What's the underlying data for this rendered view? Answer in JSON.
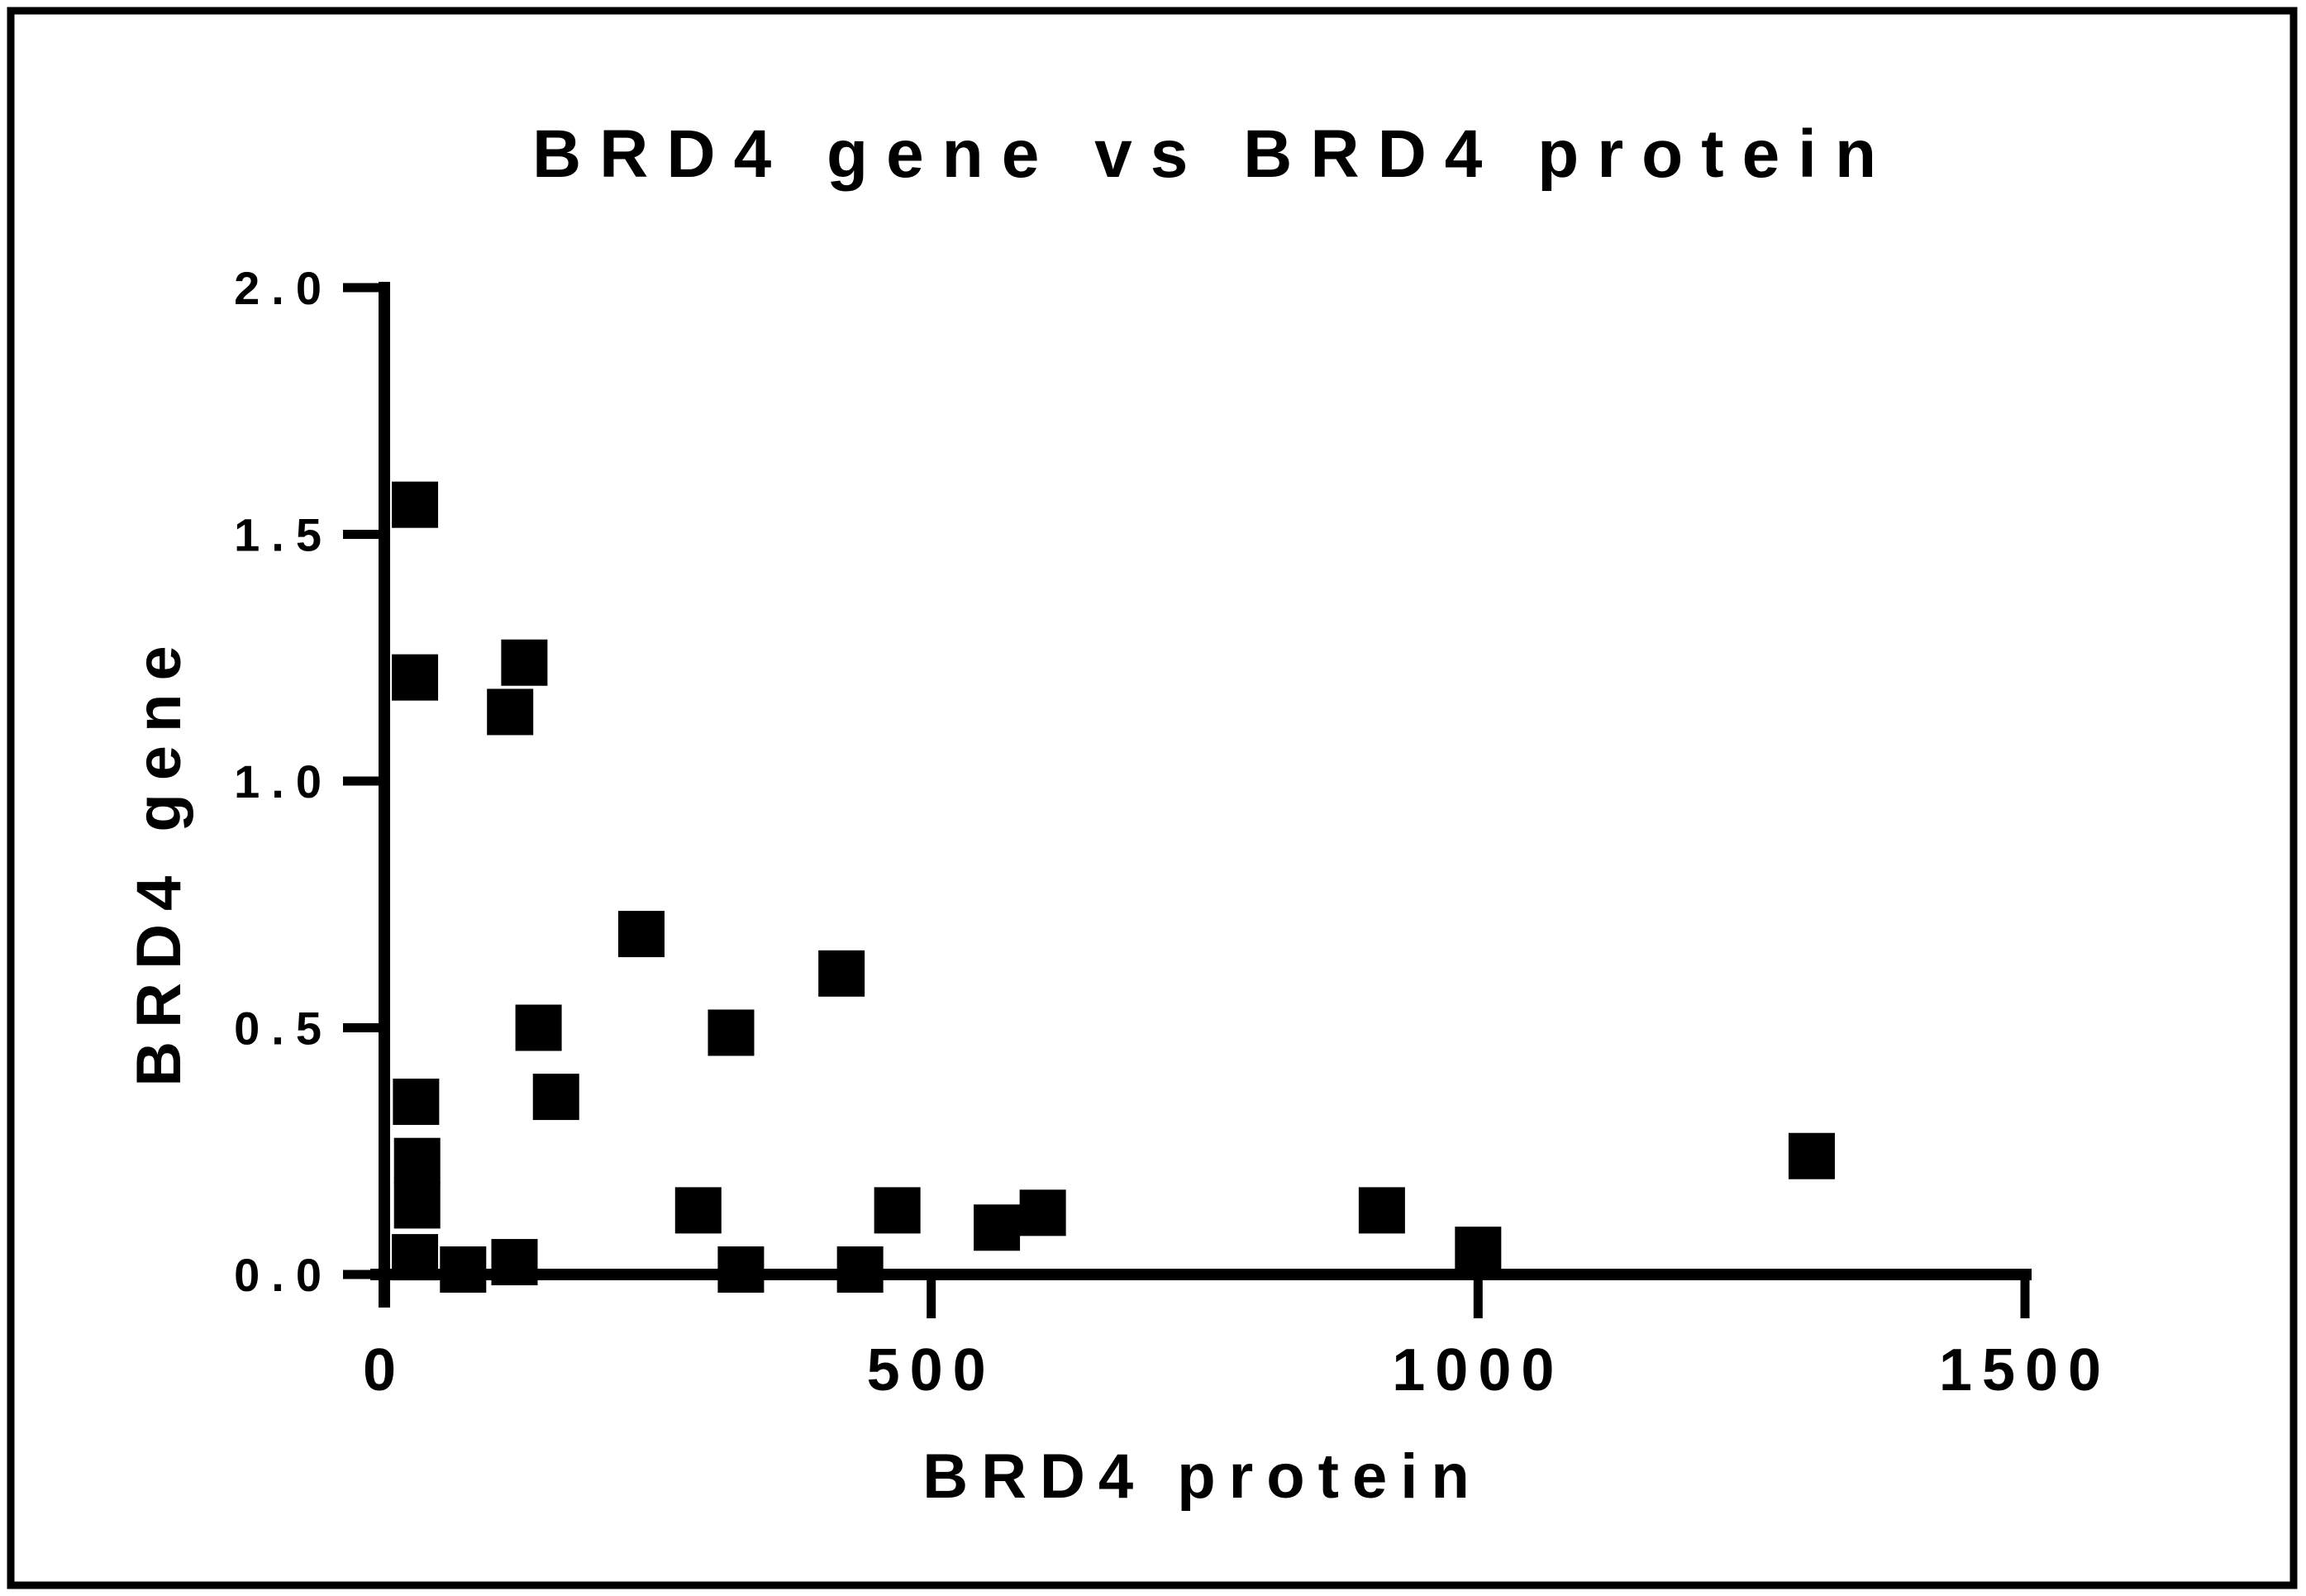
{
  "figure": {
    "background_color": "#ffffff",
    "border_color": "#000000",
    "marker_color": "#000000"
  },
  "chart_data": {
    "type": "scatter",
    "title": "BRD4 gene vs BRD4 protein",
    "xlabel": "BRD4 protein",
    "ylabel": "BRD4 gene",
    "xlim": [
      0,
      1500
    ],
    "ylim": [
      0.0,
      2.0
    ],
    "grid": false,
    "legend_position": "none",
    "xticks": {
      "values": [
        0,
        500,
        1000,
        1500
      ],
      "labels": [
        "0",
        "500",
        "1000",
        "1500"
      ]
    },
    "yticks": {
      "values": [
        0,
        0.5,
        1.0,
        1.5,
        2.0
      ],
      "labels": [
        "0.0",
        "0.5",
        "1.0",
        "1.5",
        "2.0"
      ]
    },
    "marker": {
      "shape": "square",
      "color": "#000000"
    },
    "points": [
      [
        28,
        1.56
      ],
      [
        28,
        1.21
      ],
      [
        128,
        1.24
      ],
      [
        115,
        1.14
      ],
      [
        235,
        0.69
      ],
      [
        418,
        0.61
      ],
      [
        141,
        0.5
      ],
      [
        317,
        0.49
      ],
      [
        157,
        0.36
      ],
      [
        29,
        0.35
      ],
      [
        30,
        0.23
      ],
      [
        30,
        0.14
      ],
      [
        28,
        0.035
      ],
      [
        72,
        0.01
      ],
      [
        119,
        0.025
      ],
      [
        287,
        0.13
      ],
      [
        326,
        0.01
      ],
      [
        435,
        0.01
      ],
      [
        469,
        0.13
      ],
      [
        560,
        0.095
      ],
      [
        602,
        0.125
      ],
      [
        912,
        0.13
      ],
      [
        1000,
        0.05
      ],
      [
        1305,
        0.24
      ]
    ]
  }
}
